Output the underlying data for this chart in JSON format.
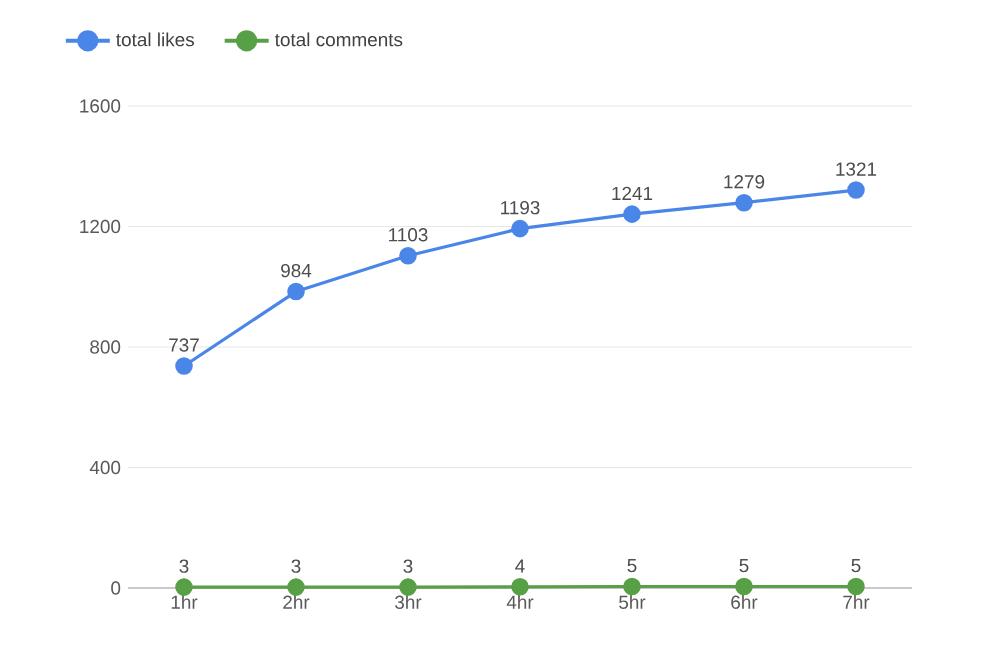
{
  "chart_data": {
    "type": "line",
    "categories": [
      "1hr",
      "2hr",
      "3hr",
      "4hr",
      "5hr",
      "6hr",
      "7hr"
    ],
    "series": [
      {
        "name": "total likes",
        "color": "#4a86e8",
        "values": [
          737,
          984,
          1103,
          1193,
          1241,
          1279,
          1321
        ]
      },
      {
        "name": "total comments",
        "color": "#57a045",
        "values": [
          3,
          3,
          3,
          4,
          5,
          5,
          5
        ]
      }
    ],
    "ylim": [
      0,
      1600
    ],
    "yticks": [
      0,
      400,
      800,
      1200,
      1600
    ],
    "grid": "y",
    "legend": "top left",
    "marker": "circle",
    "line_style": "solid",
    "data_labels": true
  }
}
